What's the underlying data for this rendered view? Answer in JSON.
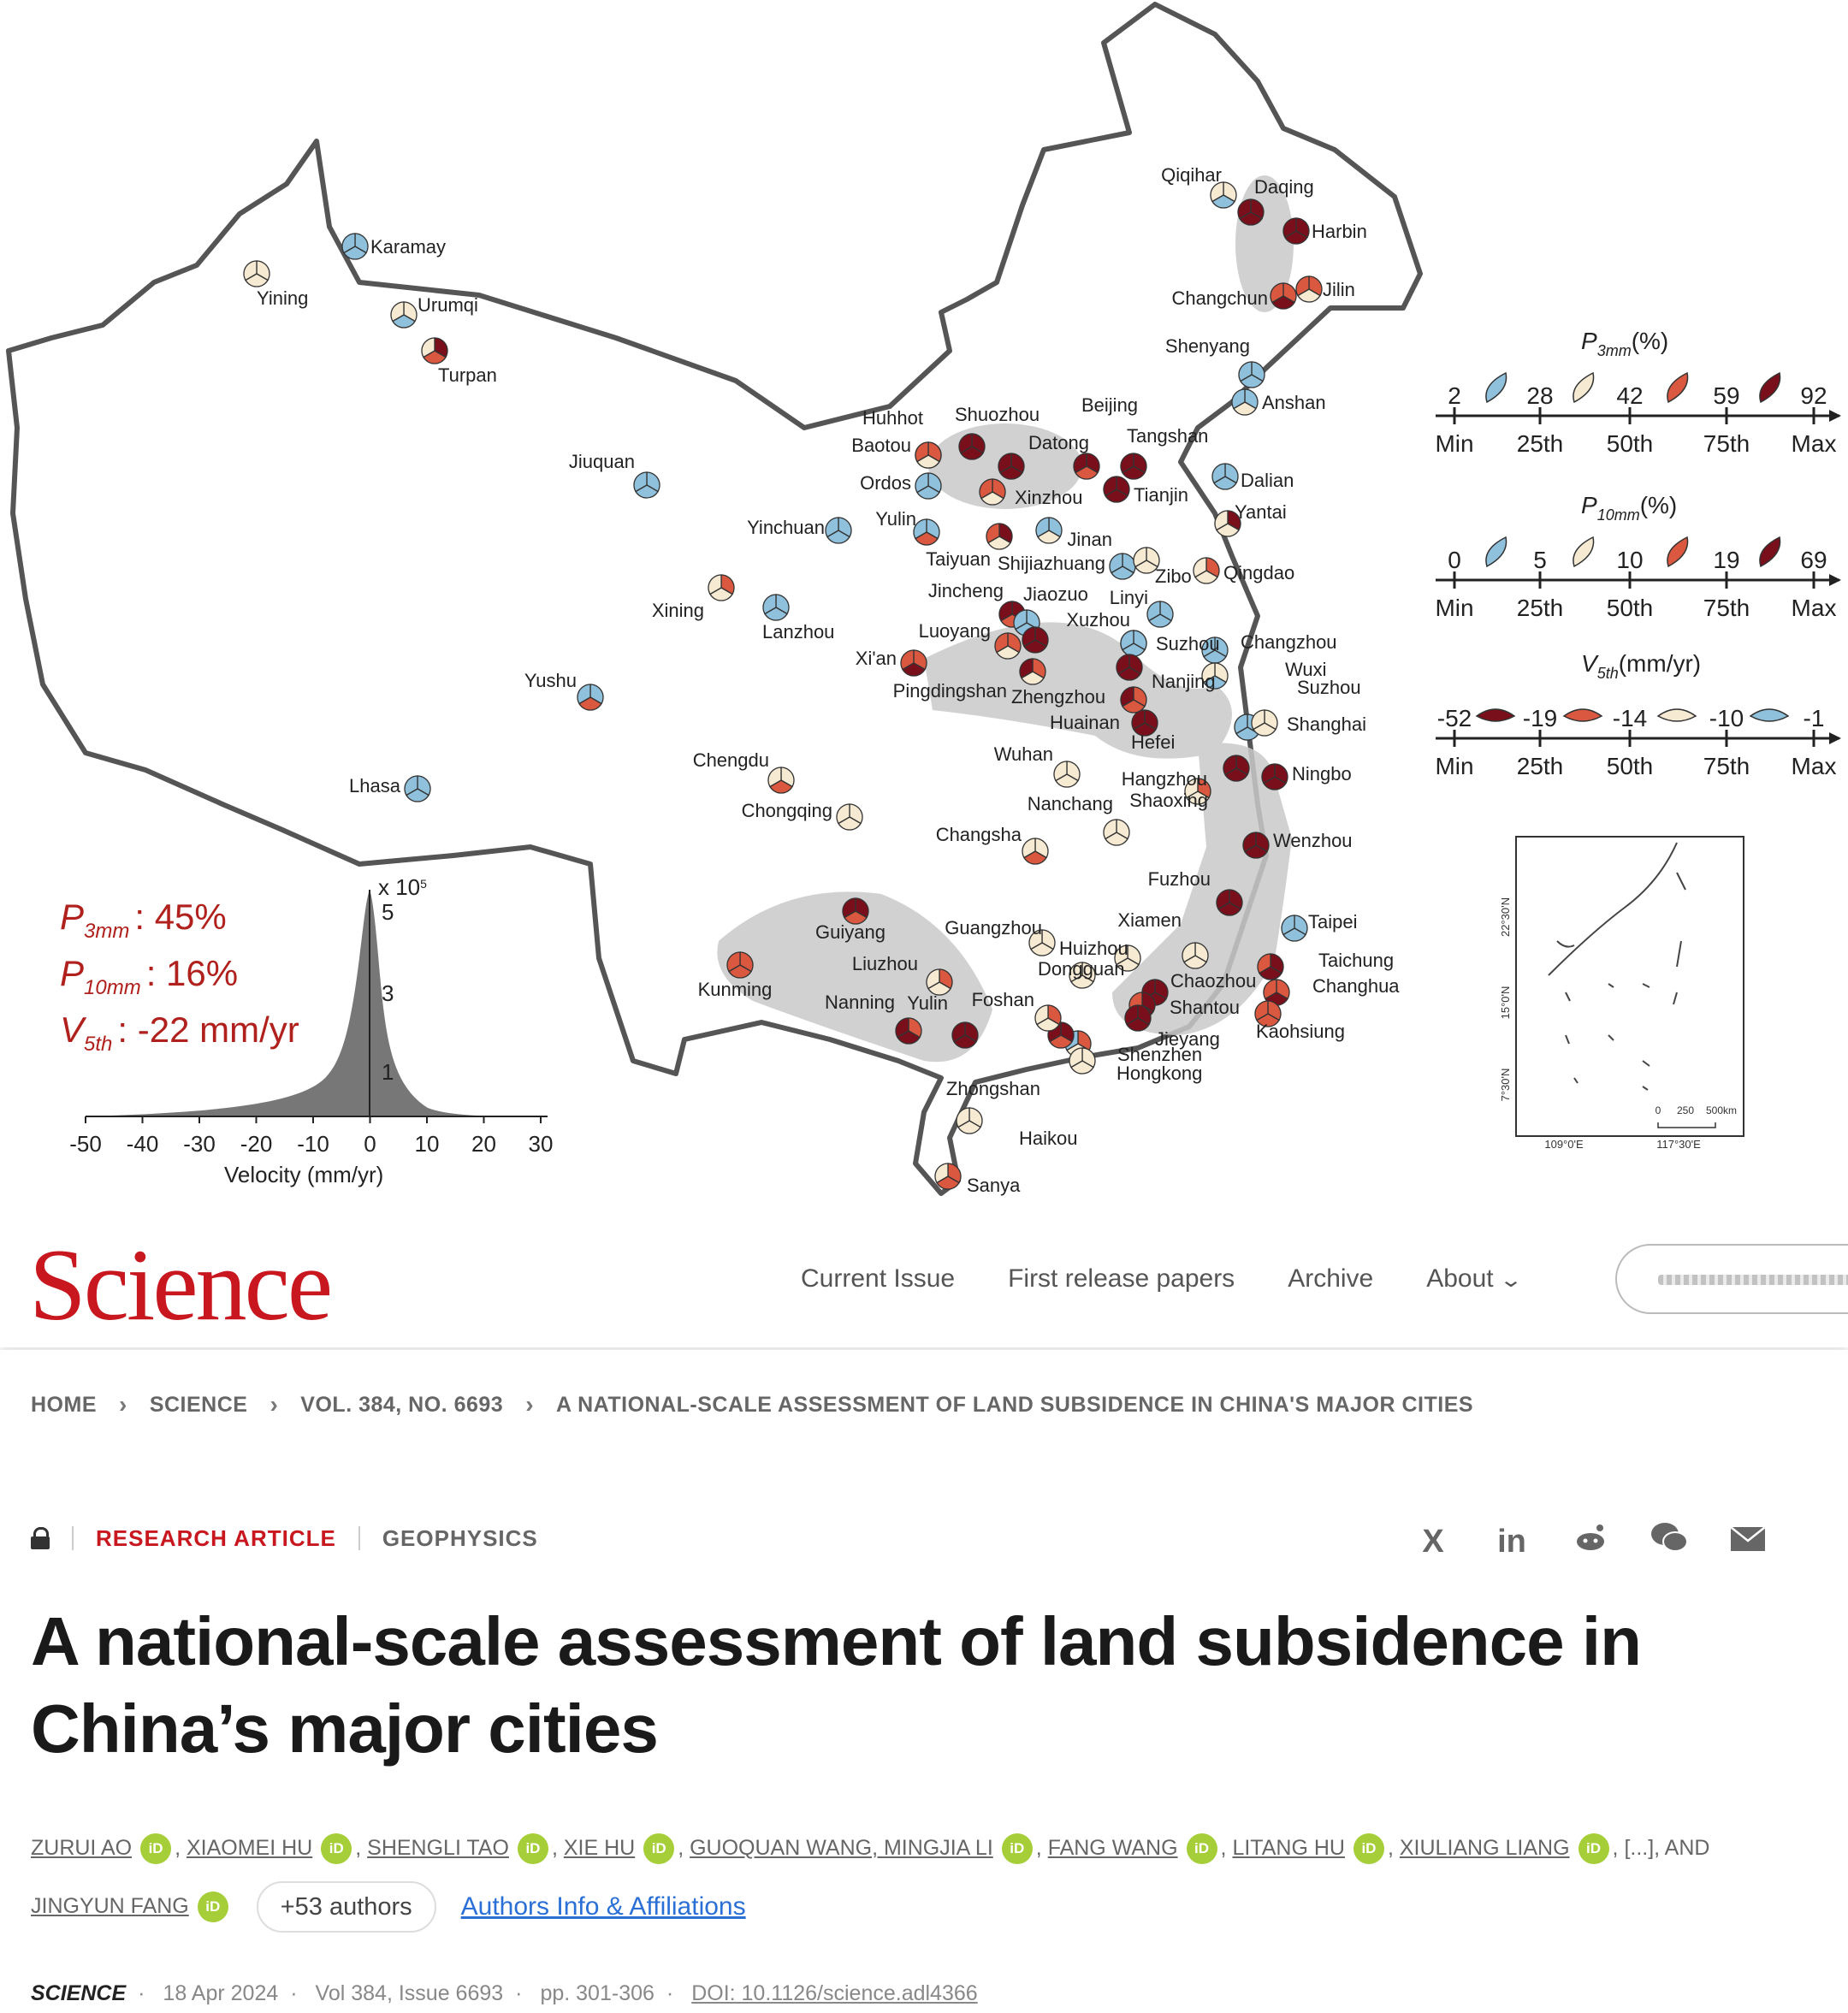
{
  "figure": {
    "cities": [
      "Qiqihar",
      "Daqing",
      "Harbin",
      "Changchun",
      "Jilin",
      "Shenyang",
      "Anshan",
      "Dalian",
      "Yantai",
      "Qingdao",
      "Karamay",
      "Yining",
      "Urumqi",
      "Turpan",
      "Jiuquan",
      "Yinchuan",
      "Yulin",
      "Taiyuan",
      "Shijiazhuang",
      "Jinan",
      "Zibo",
      "Linyi",
      "Xuzhou",
      "Huhhot",
      "Shuozhou",
      "Datong",
      "Baotou",
      "Ordos",
      "Beijing",
      "Tangshan",
      "Xinzhou",
      "Tianjin",
      "Xining",
      "Lanzhou",
      "Jincheng",
      "Jiaozuo",
      "Luoyang",
      "Xi'an",
      "Pingdingshan",
      "Zhengzhou",
      "Suzhou",
      "Changzhou",
      "Wuxi",
      "Nanjing",
      "Huainan",
      "Hefei",
      "Shanghai",
      "Yushu",
      "Lhasa",
      "Chengdu",
      "Chongqing",
      "Wuhan",
      "Hangzhou",
      "Ningbo",
      "Shaoxing",
      "Nanchang",
      "Changsha",
      "Wenzhou",
      "Fuzhou",
      "Taipei",
      "Xiamen",
      "Taichung",
      "Changhua",
      "Kaohsiung",
      "Guangzhou",
      "Huizhou",
      "Dongguan",
      "Chaozhou",
      "Shantou",
      "Jieyang",
      "Shenzhen",
      "Hongkong",
      "Zhongshan",
      "Foshan",
      "Guiyang",
      "Liuzhou",
      "Kunming",
      "Nanning",
      "Haikou",
      "Sanya"
    ],
    "cities_extra": [
      "Suzhou",
      "Yulin"
    ],
    "legend": {
      "p3mm": {
        "title": "P",
        "sub": "3mm",
        "unit": "(%)",
        "values": [
          "2",
          "28",
          "42",
          "59",
          "92"
        ],
        "ranks": [
          "Min",
          "25th",
          "50th",
          "75th",
          "Max"
        ]
      },
      "p10mm": {
        "title": "P",
        "sub": "10mm",
        "unit": "(%)",
        "values": [
          "0",
          "5",
          "10",
          "19",
          "69"
        ],
        "ranks": [
          "Min",
          "25th",
          "50th",
          "75th",
          "Max"
        ]
      },
      "v5th": {
        "title": "V",
        "sub": "5th",
        "unit": "(mm/yr)",
        "values": [
          "-52",
          "-19",
          "-14",
          "-10",
          "-1"
        ],
        "ranks": [
          "Min",
          "25th",
          "50th",
          "75th",
          "Max"
        ]
      },
      "colors": [
        "#7a0f1c",
        "#d9583f",
        "#f6ead3",
        "#8fc0dc"
      ]
    },
    "stats": {
      "p3mm": {
        "label": "P",
        "sub": "3mm",
        "value": ": 45%"
      },
      "p10mm": {
        "label": "P",
        "sub": "10mm",
        "value": ": 16%"
      },
      "v5th": {
        "label": "V",
        "sub": "5th",
        "value": ": -22 mm/yr"
      }
    },
    "histogram": {
      "x_ticks": [
        "-50",
        "-40",
        "-30",
        "-20",
        "-10",
        "0",
        "10",
        "20",
        "30"
      ],
      "y_ticks": [
        "1",
        "3",
        "5"
      ],
      "y_exponent": "x 10",
      "y_exponent_power": "5",
      "xlabel": "Velocity (mm/yr)"
    },
    "inset": {
      "lat_labels": [
        "22°30'N",
        "15°0'N",
        "7°30'N"
      ],
      "lon_labels": [
        "109°0'E",
        "117°30'E"
      ],
      "scale": [
        "0",
        "250",
        "500km"
      ]
    }
  },
  "header": {
    "logo": "Science",
    "nav": [
      "Current Issue",
      "First release papers",
      "Archive",
      "About"
    ]
  },
  "breadcrumb": [
    "HOME",
    "SCIENCE",
    "VOL. 384, NO. 6693",
    "A NATIONAL-SCALE ASSESSMENT OF LAND SUBSIDENCE IN CHINA'S MAJOR CITIES"
  ],
  "article": {
    "type": "RESEARCH ARTICLE",
    "subject": "GEOPHYSICS",
    "title": "A national-scale assessment of land subsidence in China’s major cities",
    "authors": [
      "ZURUI AO",
      "XIAOMEI HU",
      "SHENGLI TAO",
      "XIE HU",
      "GUOQUAN WANG, MINGJIA LI",
      "FANG WANG",
      "LITANG HU",
      "XIULIANG LIANG",
      "[...], AND",
      "JINGYUN FANG"
    ],
    "orcid_text": "iD",
    "more_authors": "+53 authors",
    "affiliations": "Authors Info & Affiliations",
    "share": [
      "X",
      "in"
    ],
    "journal": "SCIENCE",
    "date": "18 Apr 2024",
    "volume": "Vol 384, Issue 6693",
    "pages": "pp. 301-306",
    "doi": "DOI: 10.1126/science.adl4366"
  }
}
